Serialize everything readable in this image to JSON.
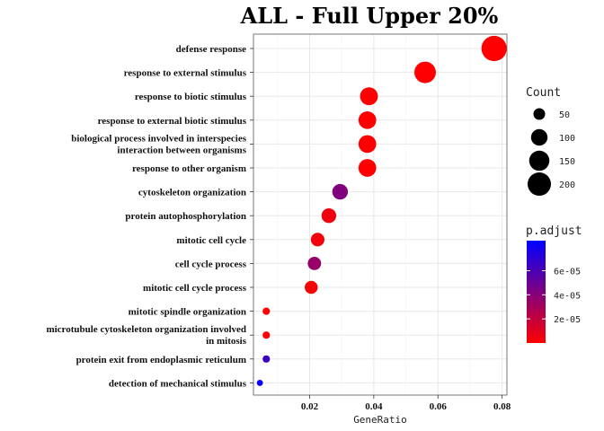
{
  "chart_data": {
    "type": "scatter",
    "subtype": "dot-plot",
    "title": "ALL - Full Upper 20%",
    "xlabel": "GeneRatio",
    "ylabel": "",
    "xlim": [
      0.0025,
      0.0815
    ],
    "x_ticks": [
      0.02,
      0.04,
      0.06,
      0.08
    ],
    "x_tick_labels": [
      "0.02",
      "0.04",
      "0.06",
      "0.08"
    ],
    "grid": true,
    "categories": [
      "defense response",
      "response to external stimulus",
      "response to biotic stimulus",
      "response to external biotic stimulus",
      "biological process involved in interspecies\ninteraction between organisms",
      "response to other organism",
      "cytoskeleton organization",
      "protein autophosphorylation",
      "mitotic cell cycle",
      "cell cycle process",
      "mitotic cell cycle process",
      "mitotic spindle organization",
      "microtubule cytoskeleton organization involved\nin mitosis",
      "protein exit from endoplasmic reticulum",
      "detection of mechanical stimulus"
    ],
    "points": [
      {
        "term": "defense response",
        "gene_ratio": 0.0775,
        "count": 235,
        "p_adjust": 1e-07
      },
      {
        "term": "response to external stimulus",
        "gene_ratio": 0.056,
        "count": 170,
        "p_adjust": 3e-07
      },
      {
        "term": "response to biotic stimulus",
        "gene_ratio": 0.0385,
        "count": 117,
        "p_adjust": 5e-07
      },
      {
        "term": "response to external biotic stimulus",
        "gene_ratio": 0.038,
        "count": 115,
        "p_adjust": 5e-07
      },
      {
        "term": "biological process involved in interspecies interaction between organisms",
        "gene_ratio": 0.038,
        "count": 115,
        "p_adjust": 5e-07
      },
      {
        "term": "response to other organism",
        "gene_ratio": 0.038,
        "count": 115,
        "p_adjust": 5e-07
      },
      {
        "term": "cytoskeleton organization",
        "gene_ratio": 0.0295,
        "count": 89,
        "p_adjust": 4.2e-05
      },
      {
        "term": "protein autophosphorylation",
        "gene_ratio": 0.026,
        "count": 79,
        "p_adjust": 5e-06
      },
      {
        "term": "mitotic cell cycle",
        "gene_ratio": 0.0225,
        "count": 68,
        "p_adjust": 4e-06
      },
      {
        "term": "cell cycle process",
        "gene_ratio": 0.0215,
        "count": 65,
        "p_adjust": 3.5e-05
      },
      {
        "term": "mitotic cell cycle process",
        "gene_ratio": 0.0205,
        "count": 62,
        "p_adjust": 2e-06
      },
      {
        "term": "mitotic spindle organization",
        "gene_ratio": 0.0065,
        "count": 20,
        "p_adjust": 1e-06
      },
      {
        "term": "microtubule cytoskeleton organization involved in mitosis",
        "gene_ratio": 0.0065,
        "count": 20,
        "p_adjust": 1e-06
      },
      {
        "term": "protein exit from endoplasmic reticulum",
        "gene_ratio": 0.0065,
        "count": 20,
        "p_adjust": 6.5e-05
      },
      {
        "term": "detection of mechanical stimulus",
        "gene_ratio": 0.0045,
        "count": 14,
        "p_adjust": 8.2e-05
      }
    ],
    "legend_count": {
      "title": "Count",
      "values": [
        50,
        100,
        150,
        200
      ],
      "labels": [
        "50",
        "100",
        "150",
        "200"
      ]
    },
    "legend_p_adjust": {
      "title": "p.adjust",
      "range": [
        0,
        8.5e-05
      ],
      "breaks": [
        2e-05,
        4e-05,
        6e-05
      ],
      "labels": [
        "2e-05",
        "4e-05",
        "6e-05"
      ],
      "color_low": "#ff0000",
      "color_high": "#0000ff"
    },
    "legend_placement": "right"
  }
}
